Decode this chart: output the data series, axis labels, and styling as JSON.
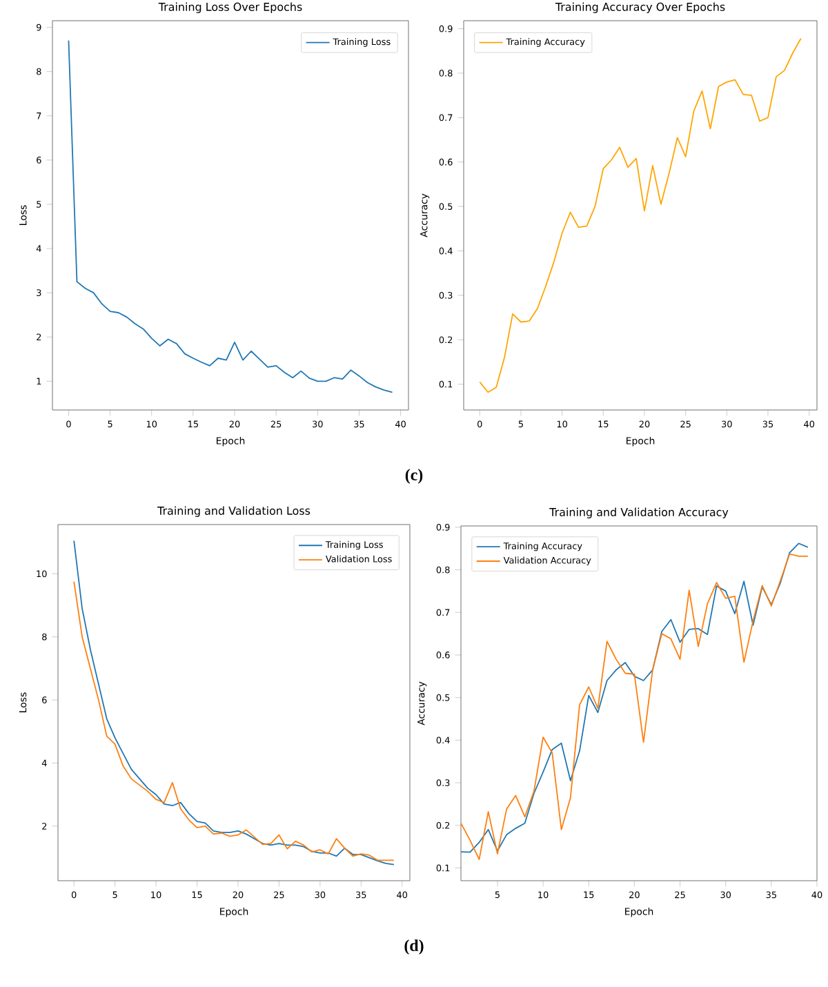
{
  "chart_data": [
    {
      "type": "line",
      "title": "Training Loss Over Epochs",
      "xlabel": "Epoch",
      "ylabel": "Loss",
      "x": [
        0,
        1,
        2,
        3,
        4,
        5,
        6,
        7,
        8,
        9,
        10,
        11,
        12,
        13,
        14,
        15,
        16,
        17,
        18,
        19,
        20,
        21,
        22,
        23,
        24,
        25,
        26,
        27,
        28,
        29,
        30,
        31,
        32,
        33,
        34,
        35,
        36,
        37,
        38,
        39
      ],
      "xlim": [
        -1.95,
        40.95
      ],
      "ylim": [
        0.35,
        9.15
      ],
      "xticks": [
        0,
        5,
        10,
        15,
        20,
        25,
        30,
        35,
        40
      ],
      "yticks": [
        1,
        2,
        3,
        4,
        5,
        6,
        7,
        8,
        9
      ],
      "legend": "top right",
      "annotations": [
        "(c)"
      ],
      "series": [
        {
          "name": "Training Loss",
          "color": "#1f77b4",
          "values": [
            8.7,
            3.25,
            3.1,
            3.0,
            2.75,
            2.58,
            2.55,
            2.45,
            2.3,
            2.18,
            1.97,
            1.8,
            1.95,
            1.85,
            1.62,
            1.52,
            1.43,
            1.35,
            1.52,
            1.48,
            1.88,
            1.48,
            1.68,
            1.5,
            1.32,
            1.35,
            1.2,
            1.08,
            1.23,
            1.07,
            1.0,
            1.0,
            1.08,
            1.05,
            1.25,
            1.12,
            0.97,
            0.87,
            0.8,
            0.75
          ]
        }
      ]
    },
    {
      "type": "line",
      "title": "Training Accuracy Over Epochs",
      "xlabel": "Epoch",
      "ylabel": "Accuracy",
      "x": [
        0,
        1,
        2,
        3,
        4,
        5,
        6,
        7,
        8,
        9,
        10,
        11,
        12,
        13,
        14,
        15,
        16,
        17,
        18,
        19,
        20,
        21,
        22,
        23,
        24,
        25,
        26,
        27,
        28,
        29,
        30,
        31,
        32,
        33,
        34,
        35,
        36,
        37,
        38,
        39
      ],
      "xlim": [
        -1.95,
        40.95
      ],
      "ylim": [
        0.042,
        0.918
      ],
      "xticks": [
        0,
        5,
        10,
        15,
        20,
        25,
        30,
        35,
        40
      ],
      "yticks": [
        0.1,
        0.2,
        0.3,
        0.4,
        0.5,
        0.6,
        0.7,
        0.8,
        0.9
      ],
      "legend": "top left",
      "series": [
        {
          "name": "Training Accuracy",
          "color": "#ffa500",
          "values": [
            0.105,
            0.082,
            0.093,
            0.16,
            0.258,
            0.24,
            0.242,
            0.27,
            0.32,
            0.375,
            0.44,
            0.487,
            0.453,
            0.456,
            0.5,
            0.585,
            0.605,
            0.633,
            0.588,
            0.608,
            0.49,
            0.592,
            0.505,
            0.575,
            0.655,
            0.612,
            0.715,
            0.76,
            0.675,
            0.77,
            0.78,
            0.785,
            0.752,
            0.75,
            0.692,
            0.7,
            0.792,
            0.806,
            0.845,
            0.878
          ]
        }
      ]
    },
    {
      "type": "line",
      "title": "Training and Validation Loss",
      "xlabel": "Epoch",
      "ylabel": "Loss",
      "x": [
        0,
        1,
        2,
        3,
        4,
        5,
        6,
        7,
        8,
        9,
        10,
        11,
        12,
        13,
        14,
        15,
        16,
        17,
        18,
        19,
        20,
        21,
        22,
        23,
        24,
        25,
        26,
        27,
        28,
        29,
        30,
        31,
        32,
        33,
        34,
        35,
        36,
        37,
        38,
        39
      ],
      "xlim": [
        -1.95,
        40.95
      ],
      "ylim": [
        0.27,
        11.56
      ],
      "xticks": [
        0,
        5,
        10,
        15,
        20,
        25,
        30,
        35,
        40
      ],
      "yticks": [
        2,
        4,
        6,
        8,
        10
      ],
      "legend": "top right",
      "annotations": [
        "(d)"
      ],
      "series": [
        {
          "name": "Training Loss",
          "color": "#1f77b4",
          "values": [
            11.05,
            8.9,
            7.6,
            6.5,
            5.4,
            4.8,
            4.3,
            3.8,
            3.5,
            3.2,
            3.0,
            2.7,
            2.65,
            2.75,
            2.4,
            2.15,
            2.1,
            1.85,
            1.8,
            1.8,
            1.85,
            1.75,
            1.6,
            1.45,
            1.4,
            1.45,
            1.4,
            1.4,
            1.35,
            1.2,
            1.15,
            1.15,
            1.05,
            1.3,
            1.1,
            1.1,
            1.0,
            0.9,
            0.82,
            0.78
          ]
        },
        {
          "name": "Validation Loss",
          "color": "#ff7f0e",
          "values": [
            9.75,
            8.0,
            7.0,
            6.0,
            4.85,
            4.6,
            3.9,
            3.5,
            3.3,
            3.1,
            2.85,
            2.75,
            3.38,
            2.55,
            2.2,
            1.95,
            2.0,
            1.75,
            1.78,
            1.68,
            1.72,
            1.88,
            1.65,
            1.42,
            1.45,
            1.72,
            1.28,
            1.52,
            1.4,
            1.18,
            1.25,
            1.12,
            1.6,
            1.3,
            1.05,
            1.12,
            1.08,
            0.92,
            0.92,
            0.92
          ]
        }
      ]
    },
    {
      "type": "line",
      "title": "Training and Validation Accuracy",
      "xlabel": "Epoch",
      "ylabel": "Accuracy",
      "x": [
        1,
        2,
        3,
        4,
        5,
        6,
        7,
        8,
        9,
        10,
        11,
        12,
        13,
        14,
        15,
        16,
        17,
        18,
        19,
        20,
        21,
        22,
        23,
        24,
        25,
        26,
        27,
        28,
        29,
        30,
        31,
        32,
        33,
        34,
        35,
        36,
        37,
        38,
        39
      ],
      "xlim": [
        1,
        40
      ],
      "ylim": [
        0.07,
        0.903
      ],
      "xticks": [
        5,
        10,
        15,
        20,
        25,
        30,
        35,
        40
      ],
      "yticks": [
        0.1,
        0.2,
        0.3,
        0.4,
        0.5,
        0.6,
        0.7,
        0.8,
        0.9
      ],
      "legend": "top left",
      "series": [
        {
          "name": "Training Accuracy",
          "color": "#1f77b4",
          "values": [
            0.138,
            0.137,
            0.16,
            0.19,
            0.14,
            0.178,
            0.193,
            0.205,
            0.275,
            0.325,
            0.378,
            0.393,
            0.305,
            0.375,
            0.505,
            0.465,
            0.54,
            0.565,
            0.582,
            0.55,
            0.54,
            0.565,
            0.655,
            0.683,
            0.63,
            0.66,
            0.662,
            0.648,
            0.762,
            0.75,
            0.697,
            0.773,
            0.67,
            0.76,
            0.718,
            0.77,
            0.84,
            0.862,
            0.853
          ]
        },
        {
          "name": "Validation Accuracy",
          "color": "#ff7f0e",
          "values": [
            0.205,
            0.165,
            0.12,
            0.232,
            0.133,
            0.238,
            0.27,
            0.22,
            0.28,
            0.407,
            0.37,
            0.19,
            0.265,
            0.483,
            0.525,
            0.475,
            0.632,
            0.59,
            0.557,
            0.555,
            0.395,
            0.565,
            0.65,
            0.638,
            0.59,
            0.752,
            0.62,
            0.72,
            0.77,
            0.733,
            0.738,
            0.583,
            0.68,
            0.763,
            0.715,
            0.775,
            0.837,
            0.832,
            0.832
          ]
        }
      ]
    }
  ]
}
